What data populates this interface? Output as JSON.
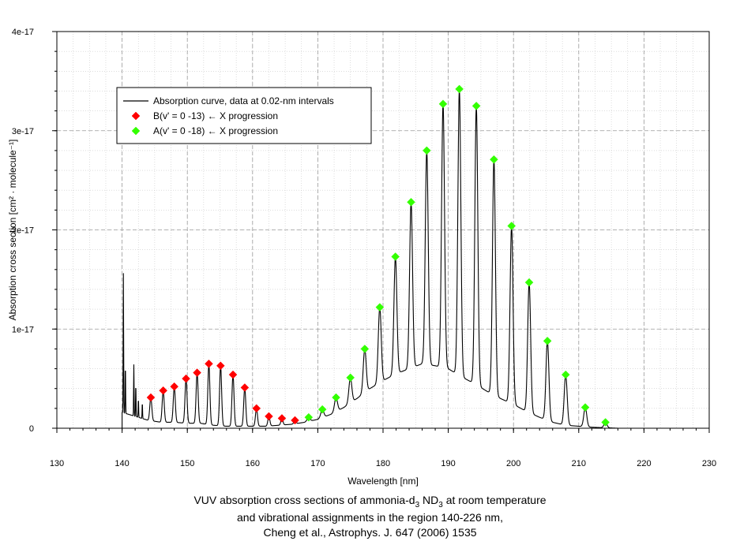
{
  "chart_data": {
    "type": "line",
    "xlabel": "Wavelength [nm]",
    "ylabel": "Absorption cross section [cm² · molecule⁻¹]",
    "xlim": [
      130,
      230
    ],
    "ylim": [
      0,
      4e-17
    ],
    "x_ticks": [
      130,
      140,
      150,
      160,
      170,
      180,
      190,
      200,
      210,
      220,
      230
    ],
    "y_ticks": [
      {
        "value": 0,
        "label": "0"
      },
      {
        "value": 1e-17,
        "label": "1e-17"
      },
      {
        "value": 2e-17,
        "label": "2e-17"
      },
      {
        "value": 3e-17,
        "label": "3e-17"
      },
      {
        "value": 4e-17,
        "label": "4e-17"
      }
    ],
    "grid": true,
    "legend_position": "top-left",
    "legend": [
      {
        "label": "Absorption curve, data at 0.02-nm intervals",
        "marker": "line",
        "color": "#000000"
      },
      {
        "label": "B(v' = 0 -13) ← X progression",
        "marker": "diamond",
        "color": "#ff0000"
      },
      {
        "label": "A(v' = 0 -18) ← X progression",
        "marker": "diamond",
        "color": "#33ff00"
      }
    ],
    "series": [
      {
        "name": "B(v' = 0 -13) ← X progression",
        "color": "#ff0000",
        "x": [
          144.4,
          146.3,
          148.0,
          149.8,
          151.5,
          153.3,
          155.1,
          157.0,
          158.8,
          160.6,
          162.5,
          164.5,
          166.5
        ],
        "y": [
          3.1e-18,
          3.8e-18,
          4.2e-18,
          5e-18,
          5.6e-18,
          6.5e-18,
          6.3e-18,
          5.4e-18,
          4.1e-18,
          2e-18,
          1.2e-18,
          1e-18,
          8e-19
        ]
      },
      {
        "name": "A(v' = 0 -18) ← X progression",
        "color": "#33ff00",
        "x": [
          168.6,
          170.7,
          172.8,
          175.0,
          177.2,
          179.5,
          181.9,
          184.3,
          186.7,
          189.2,
          191.7,
          194.3,
          197.0,
          199.7,
          202.4,
          205.2,
          208.0,
          211.0,
          214.1
        ],
        "y": [
          1.1e-18,
          1.9e-18,
          3.1e-18,
          5.1e-18,
          8e-18,
          1.22e-17,
          1.73e-17,
          2.28e-17,
          2.8e-17,
          3.27e-17,
          3.42e-17,
          3.25e-17,
          2.71e-17,
          2.04e-17,
          1.47e-17,
          8.8e-18,
          5.4e-18,
          2.1e-18,
          6e-19
        ]
      },
      {
        "name": "Absorption curve, data at 0.02-nm intervals",
        "color": "#000000",
        "baseline_x": [
          140.0,
          142.0,
          144.0,
          146.0,
          148.0,
          150.0,
          152.0,
          154.0,
          156.0,
          158.0,
          160.0,
          162.0,
          164.0,
          166.0,
          168.0,
          170.0,
          172.0,
          174.0,
          176.0,
          178.0,
          180.0,
          182.0,
          184.0,
          186.0,
          188.0,
          190.0,
          192.0,
          194.0,
          196.0,
          198.0,
          200.0,
          202.0,
          204.0,
          206.0,
          208.0,
          210.0,
          212.0,
          214.0,
          216.0,
          218.0,
          220.0,
          226.0
        ],
        "baseline_y": [
          1.6e-18,
          1.2e-18,
          8e-19,
          6e-19,
          6e-19,
          5e-19,
          5e-19,
          3e-19,
          2e-19,
          2e-19,
          2e-19,
          2e-19,
          3e-19,
          4e-19,
          6e-19,
          9e-19,
          1.4e-18,
          2.1e-18,
          3e-18,
          4e-18,
          4.8e-18,
          5.5e-18,
          6e-18,
          6.5e-18,
          6.3e-18,
          6e-18,
          5.2e-18,
          4.5e-18,
          3.7e-18,
          3e-18,
          2.4e-18,
          1.7e-18,
          1.1e-18,
          6e-19,
          3e-19,
          2e-19,
          1e-19,
          5e-20,
          0,
          0,
          0,
          0
        ],
        "spikes": [
          {
            "x": 140.2,
            "y": 1.56e-17
          },
          {
            "x": 140.5,
            "y": 6.5e-18
          },
          {
            "x": 141.8,
            "y": 6.4e-18
          },
          {
            "x": 142.1,
            "y": 4.5e-18
          },
          {
            "x": 142.5,
            "y": 3e-18
          },
          {
            "x": 143.1,
            "y": 2.6e-18
          }
        ],
        "x_range": [
          140,
          226
        ]
      }
    ]
  },
  "caption": {
    "line1_a": "VUV absorption cross sections of ammonia-d",
    "line1_sub1": "3",
    "line1_b": " ND",
    "line1_sub2": "3",
    "line1_c": " at room temperature",
    "line2": "and vibrational assignments in the region 140-226 nm,",
    "line3": "Cheng et al., Astrophys. J. 647 (2006) 1535"
  }
}
